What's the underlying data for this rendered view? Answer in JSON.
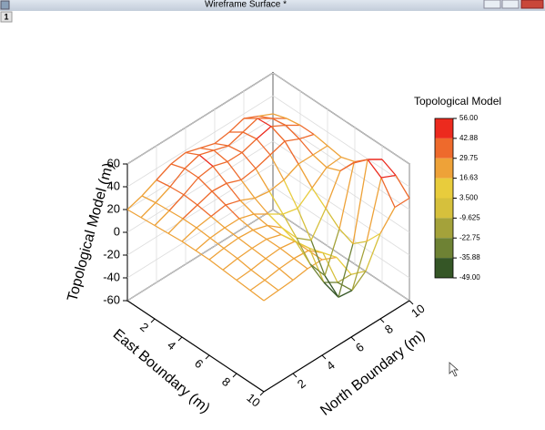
{
  "window": {
    "title": "Wireframe Surface *",
    "layer": "1"
  },
  "chart_data": {
    "type": "surface3d",
    "x_label": "East Boundary (m)",
    "y_label": "North Boundary (m)",
    "z_label": "Topological Model (m)",
    "x": [
      0,
      1,
      2,
      3,
      4,
      5,
      6,
      7,
      8,
      9,
      10
    ],
    "y": [
      0,
      1,
      2,
      3,
      4,
      5,
      6,
      7,
      8,
      9,
      10
    ],
    "z": [
      [
        20,
        21,
        22,
        23,
        24,
        24,
        24,
        23,
        22,
        21,
        20
      ],
      [
        24,
        26,
        27,
        28,
        28,
        27,
        26,
        25,
        23,
        22,
        21
      ],
      [
        30,
        32,
        33,
        32,
        30,
        28,
        27,
        26,
        25,
        24,
        22
      ],
      [
        36,
        40,
        40,
        36,
        32,
        28,
        26,
        26,
        26,
        25,
        24
      ],
      [
        38,
        44,
        42,
        35,
        28,
        24,
        22,
        22,
        24,
        24,
        24
      ],
      [
        34,
        40,
        38,
        30,
        22,
        16,
        12,
        8,
        10,
        14,
        18
      ],
      [
        30,
        36,
        38,
        32,
        20,
        8,
        -5,
        -20,
        -28,
        -20,
        -5
      ],
      [
        32,
        40,
        42,
        36,
        22,
        5,
        -15,
        -38,
        -49,
        -35,
        -10
      ],
      [
        36,
        44,
        45,
        40,
        28,
        15,
        5,
        -5,
        -10,
        0,
        15
      ],
      [
        30,
        36,
        38,
        34,
        28,
        25,
        30,
        45,
        56,
        48,
        30
      ],
      [
        24,
        28,
        30,
        30,
        28,
        26,
        30,
        40,
        48,
        42,
        30
      ]
    ],
    "xlim": [
      0,
      10
    ],
    "ylim": [
      0,
      10
    ],
    "zlim": [
      -60,
      60
    ],
    "xticks": [
      2,
      4,
      6,
      8,
      10
    ],
    "yticks": [
      2,
      4,
      6,
      8,
      10
    ],
    "zticks": [
      -60,
      -40,
      -20,
      0,
      20,
      40,
      60
    ],
    "colorbar": {
      "title": "Topological Model",
      "levels": [
        {
          "value": 56,
          "label": "56.00"
        },
        {
          "value": 42.88,
          "label": "42.88"
        },
        {
          "value": 29.75,
          "label": "29.75"
        },
        {
          "value": 16.63,
          "label": "16.63"
        },
        {
          "value": 3.5,
          "label": "3.500"
        },
        {
          "value": -9.625,
          "label": "-9.625"
        },
        {
          "value": -22.75,
          "label": "-22.75"
        },
        {
          "value": -35.88,
          "label": "-35.88"
        },
        {
          "value": -49,
          "label": "-49.00"
        }
      ],
      "colors": [
        "#ec2a1e",
        "#ee6a2c",
        "#eea238",
        "#e8cc3c",
        "#d6c03c",
        "#a4a23a",
        "#6e8234",
        "#355626"
      ]
    }
  }
}
